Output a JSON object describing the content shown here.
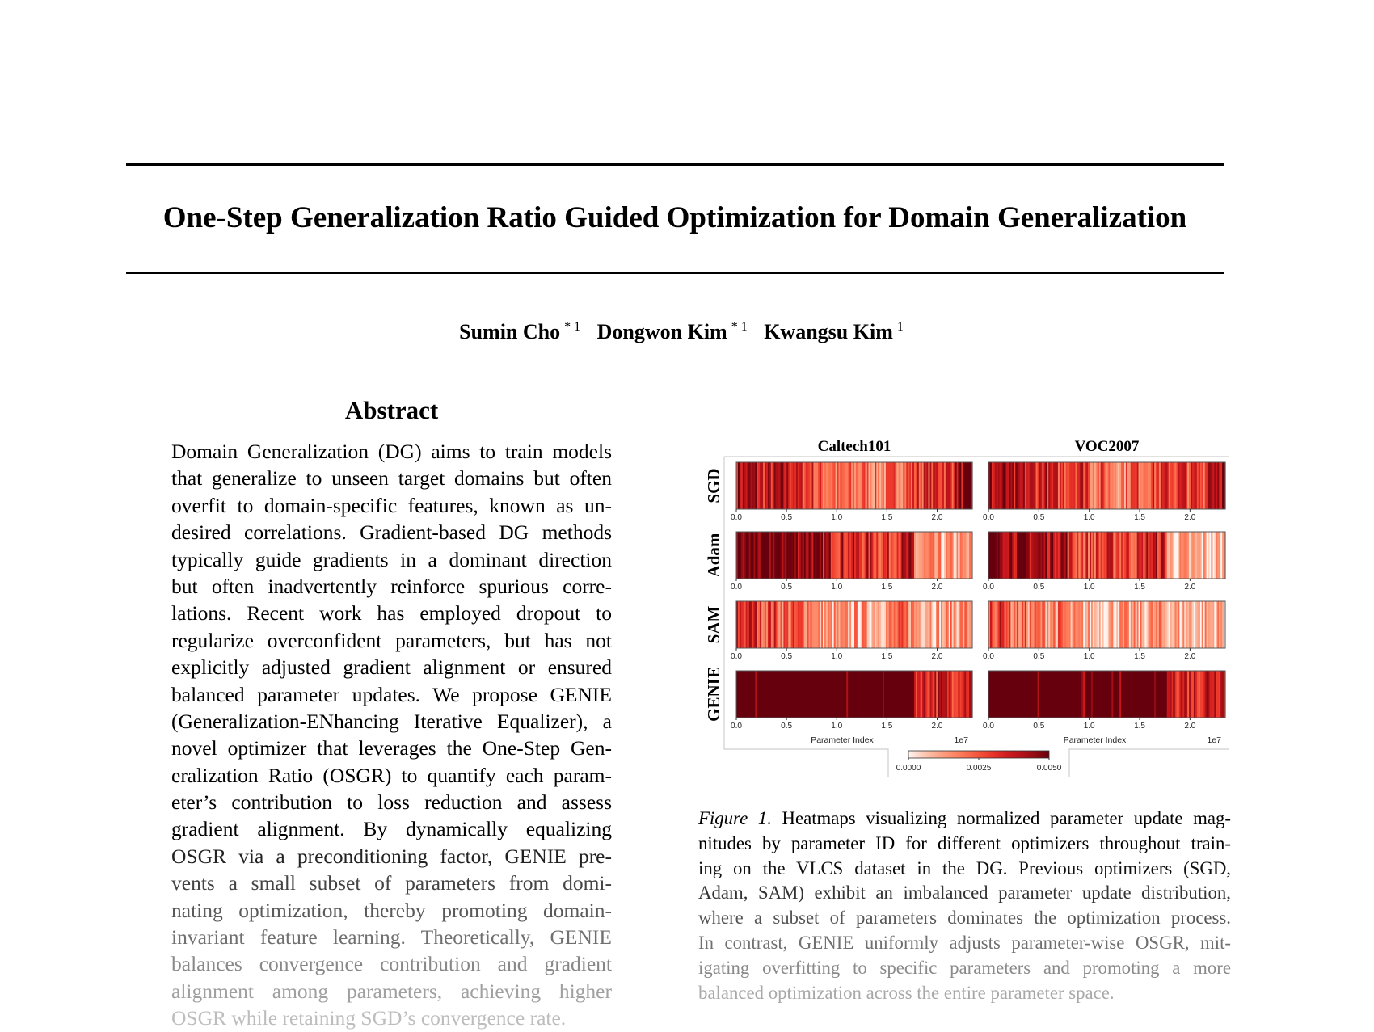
{
  "title": "One-Step Generalization Ratio Guided Optimization for Domain Generalization",
  "authors": [
    {
      "name": "Sumin Cho",
      "affil": "* 1"
    },
    {
      "name": "Dongwon Kim",
      "affil": "* 1"
    },
    {
      "name": "Kwangsu Kim",
      "affil": "1"
    }
  ],
  "abstract": {
    "heading": "Abstract",
    "lines": [
      "Domain Generalization (DG) aims to train models",
      "that generalize to unseen target domains but often",
      "overfit to domain-specific features, known as un-",
      "desired correlations. Gradient-based DG methods",
      "typically guide gradients in a dominant direction",
      "but often inadvertently reinforce spurious corre-",
      "lations.  Recent work has employed dropout to",
      "regularize overconfident parameters, but has not",
      "explicitly adjusted gradient alignment or ensured",
      "balanced parameter updates. We propose GENIE",
      "(Generalization-ENhancing Iterative Equalizer), a",
      "novel optimizer that leverages the One-Step Gen-",
      "eralization Ratio (OSGR) to quantify each param-",
      "eter’s contribution to loss reduction and assess",
      "gradient alignment.  By dynamically equalizing",
      "OSGR via a preconditioning factor, GENIE pre-",
      "vents a small subset of parameters from domi-",
      "nating optimization, thereby promoting domain-",
      "invariant feature learning. Theoretically, GENIE",
      "balances convergence contribution and gradient",
      "alignment among parameters, achieving higher",
      "OSGR while retaining SGD’s convergence rate."
    ],
    "line_colors": [
      "#000",
      "#000",
      "#000",
      "#000",
      "#000",
      "#000",
      "#000",
      "#000",
      "#000",
      "#000",
      "#000",
      "#000",
      "#000",
      "#000",
      "#000",
      "#222",
      "#444",
      "#5a5a5a",
      "#707070",
      "#888",
      "#a0a0a0",
      "#bdbdbd"
    ]
  },
  "caption": {
    "label": "Figure 1.",
    "lines": [
      " Heatmaps visualizing normalized parameter update mag-",
      "nitudes by parameter ID for different optimizers throughout train-",
      "ing on the VLCS dataset in the DG. Previous optimizers (SGD,",
      "Adam, SAM) exhibit an imbalanced parameter update distribution,",
      "where a subset of parameters dominates the optimization process.",
      "In contrast, GENIE uniformly adjusts parameter-wise OSGR, mit-",
      "igating overfitting to specific parameters and promoting a more",
      "balanced optimization across the entire parameter space."
    ],
    "line_colors": [
      "#000",
      "#000",
      "#111",
      "#333",
      "#555",
      "#707070",
      "#8a8a8a",
      "#a8a8a8"
    ]
  },
  "chart_data": {
    "type": "heatmap",
    "columns": [
      "Caltech101",
      "VOC2007"
    ],
    "rows": [
      "SGD",
      "Adam",
      "SAM",
      "GENIE"
    ],
    "xlabel": "Parameter Index",
    "x_offset_label": "1e7",
    "x_ticks": [
      "0.0",
      "0.5",
      "1.0",
      "1.5",
      "2.0"
    ],
    "xlim": [
      0,
      2.35
    ],
    "colorbar": {
      "ticks": [
        "0.0000",
        "0.0025",
        "0.0050"
      ],
      "range": [
        0,
        0.005
      ],
      "colormap": "Reds"
    },
    "segment_x_centers": [
      0.1,
      0.29,
      0.49,
      0.69,
      0.88,
      1.08,
      1.27,
      1.47,
      1.67,
      1.86,
      2.06,
      2.25
    ],
    "panels": {
      "SGD": {
        "Caltech101": [
          0.004,
          0.0035,
          0.0037,
          0.003,
          0.0023,
          0.0018,
          0.002,
          0.0018,
          0.0025,
          0.003,
          0.0033,
          0.0043
        ],
        "VOC2007": [
          0.004,
          0.0035,
          0.0035,
          0.003,
          0.0035,
          0.0023,
          0.002,
          0.0025,
          0.0028,
          0.003,
          0.0028,
          0.0045
        ]
      },
      "Adam": {
        "Caltech101": [
          0.0048,
          0.0048,
          0.0048,
          0.0046,
          0.0038,
          0.0035,
          0.0033,
          0.003,
          0.0035,
          0.0012,
          0.001,
          0.001
        ],
        "VOC2007": [
          0.0048,
          0.0045,
          0.0043,
          0.0043,
          0.0028,
          0.0028,
          0.003,
          0.0028,
          0.0035,
          0.0008,
          0.0008,
          0.0008
        ]
      },
      "SAM": {
        "Caltech101": [
          0.0033,
          0.0028,
          0.0023,
          0.0023,
          0.0012,
          0.001,
          0.0012,
          0.0015,
          0.0018,
          0.0015,
          0.0012,
          0.0015
        ],
        "VOC2007": [
          0.003,
          0.002,
          0.0018,
          0.0018,
          0.001,
          0.0008,
          0.001,
          0.001,
          0.0012,
          0.001,
          0.001,
          0.001
        ]
      },
      "GENIE": {
        "Caltech101": [
          0.005,
          0.005,
          0.005,
          0.005,
          0.005,
          0.0049,
          0.0048,
          0.0049,
          0.0048,
          0.0035,
          0.0035,
          0.0038
        ],
        "VOC2007": [
          0.005,
          0.005,
          0.005,
          0.005,
          0.005,
          0.005,
          0.0049,
          0.0049,
          0.0048,
          0.0038,
          0.0035,
          0.004
        ]
      }
    }
  }
}
